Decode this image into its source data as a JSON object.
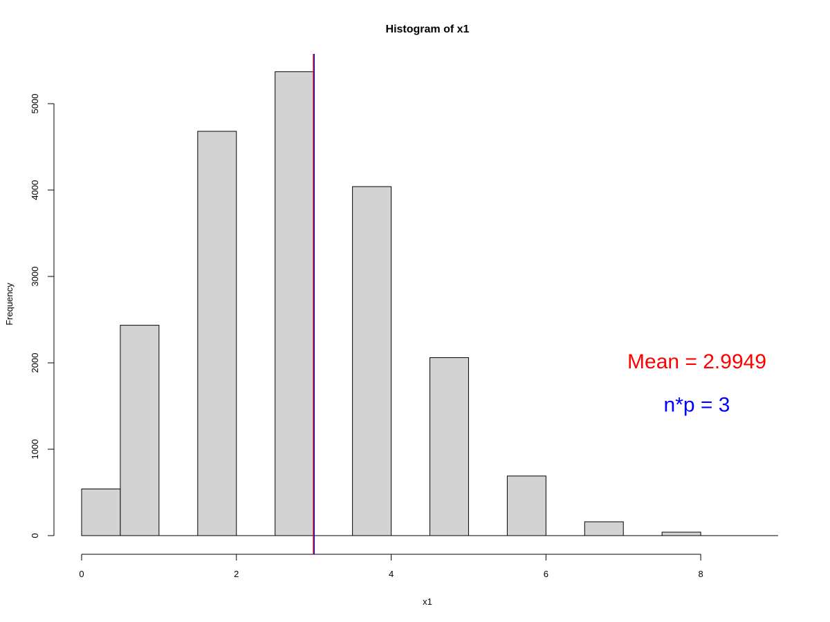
{
  "chart_data": {
    "type": "bar",
    "title": "Histogram of x1",
    "xlabel": "x1",
    "ylabel": "Frequency",
    "bins": [
      {
        "x0": 0.0,
        "x1": 0.5,
        "count": 540
      },
      {
        "x0": 0.5,
        "x1": 1.0,
        "count": 2435
      },
      {
        "x0": 1.0,
        "x1": 1.5,
        "count": 0
      },
      {
        "x0": 1.5,
        "x1": 2.0,
        "count": 4680
      },
      {
        "x0": 2.0,
        "x1": 2.5,
        "count": 0
      },
      {
        "x0": 2.5,
        "x1": 3.0,
        "count": 5370
      },
      {
        "x0": 3.0,
        "x1": 3.5,
        "count": 0
      },
      {
        "x0": 3.5,
        "x1": 4.0,
        "count": 4040
      },
      {
        "x0": 4.0,
        "x1": 4.5,
        "count": 0
      },
      {
        "x0": 4.5,
        "x1": 5.0,
        "count": 2060
      },
      {
        "x0": 5.0,
        "x1": 5.5,
        "count": 0
      },
      {
        "x0": 5.5,
        "x1": 6.0,
        "count": 690
      },
      {
        "x0": 6.0,
        "x1": 6.5,
        "count": 0
      },
      {
        "x0": 6.5,
        "x1": 7.0,
        "count": 160
      },
      {
        "x0": 7.0,
        "x1": 7.5,
        "count": 0
      },
      {
        "x0": 7.5,
        "x1": 8.0,
        "count": 40
      },
      {
        "x0": 8.0,
        "x1": 8.5,
        "count": 0
      },
      {
        "x0": 8.5,
        "x1": 9.0,
        "count": 0
      }
    ],
    "xlim": [
      0,
      9
    ],
    "ylim": [
      0,
      5600
    ],
    "x_ticks": [
      0,
      2,
      4,
      6,
      8
    ],
    "y_ticks": [
      0,
      1000,
      2000,
      3000,
      4000,
      5000
    ],
    "bar_fill": "#d3d3d3",
    "bar_stroke": "#000000",
    "vlines": [
      {
        "x": 3.0,
        "color": "#ff0000"
      },
      {
        "x": 3.0,
        "color": "#0000ff"
      }
    ],
    "annotations": [
      {
        "text": "Mean = 2.9949",
        "x": 7.95,
        "y": 2000,
        "color": "#ff0000"
      },
      {
        "text": "n*p = 3",
        "x": 7.95,
        "y": 1500,
        "color": "#0000ff"
      }
    ],
    "grid": false,
    "legend": "none"
  }
}
